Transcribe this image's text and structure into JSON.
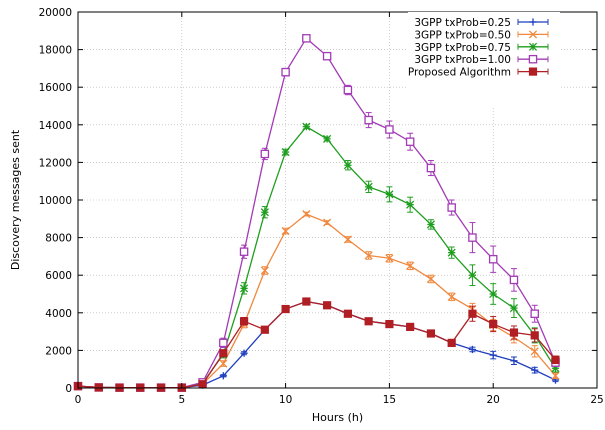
{
  "chart_data": {
    "type": "line",
    "title": "",
    "xlabel": "Hours (h)",
    "ylabel": "Discovery messages sent",
    "xlim": [
      0,
      25
    ],
    "ylim": [
      0,
      20000
    ],
    "xticks": [
      0,
      5,
      10,
      15,
      20,
      25
    ],
    "yticks": [
      0,
      2000,
      4000,
      6000,
      8000,
      10000,
      12000,
      14000,
      16000,
      18000,
      20000
    ],
    "grid": true,
    "legend_position": "top-right",
    "x": [
      0,
      1,
      2,
      3,
      4,
      5,
      6,
      7,
      8,
      9,
      10,
      11,
      12,
      13,
      14,
      15,
      16,
      17,
      18,
      19,
      20,
      21,
      22,
      23
    ],
    "series": [
      {
        "name": "3GPP txProb=0.25",
        "color": "#1f3fbf",
        "marker": "plus",
        "values": [
          100,
          30,
          20,
          20,
          20,
          20,
          150,
          650,
          1850,
          3100,
          4200,
          4600,
          4400,
          3950,
          3550,
          3400,
          3250,
          2900,
          2400,
          2050,
          1750,
          1450,
          950,
          420
        ],
        "errors": [
          0,
          0,
          0,
          0,
          0,
          0,
          0,
          60,
          80,
          60,
          60,
          60,
          60,
          60,
          60,
          60,
          60,
          60,
          60,
          120,
          200,
          200,
          150,
          80
        ]
      },
      {
        "name": "3GPP txProb=0.50",
        "color": "#f0883e",
        "marker": "cross",
        "values": [
          100,
          30,
          20,
          20,
          20,
          20,
          200,
          1300,
          3400,
          6250,
          8350,
          9250,
          8800,
          7900,
          7050,
          6900,
          6500,
          5800,
          4850,
          4200,
          3350,
          2700,
          1950,
          650
        ],
        "errors": [
          0,
          0,
          0,
          0,
          0,
          0,
          0,
          150,
          200,
          200,
          150,
          100,
          100,
          150,
          200,
          200,
          200,
          200,
          200,
          300,
          300,
          300,
          300,
          150
        ]
      },
      {
        "name": "3GPP txProb=0.75",
        "color": "#1f9e1f",
        "marker": "asterisk",
        "values": [
          100,
          30,
          20,
          20,
          20,
          20,
          250,
          1800,
          5300,
          9350,
          12550,
          13900,
          13250,
          11850,
          10700,
          10300,
          9750,
          8700,
          7200,
          6000,
          5000,
          4250,
          2800,
          1050
        ],
        "errors": [
          0,
          0,
          0,
          0,
          0,
          0,
          0,
          200,
          300,
          300,
          150,
          100,
          100,
          250,
          300,
          400,
          400,
          250,
          300,
          550,
          550,
          500,
          400,
          200
        ]
      },
      {
        "name": "3GPP txProb=1.00",
        "color": "#a23bb5",
        "marker": "open-square",
        "values": [
          100,
          30,
          20,
          20,
          20,
          20,
          300,
          2400,
          7250,
          12450,
          16800,
          18600,
          17650,
          15850,
          14250,
          13750,
          13100,
          11700,
          9600,
          8000,
          6850,
          5750,
          3950,
          1350
        ],
        "errors": [
          0,
          0,
          0,
          0,
          0,
          0,
          0,
          250,
          350,
          300,
          200,
          100,
          100,
          250,
          400,
          450,
          450,
          400,
          400,
          800,
          700,
          600,
          450,
          200
        ]
      },
      {
        "name": "Proposed Algorithm",
        "color": "#b01f24",
        "marker": "filled-square",
        "values": [
          100,
          30,
          20,
          20,
          20,
          20,
          200,
          1850,
          3550,
          3100,
          4200,
          4600,
          4400,
          3950,
          3550,
          3400,
          3250,
          2900,
          2400,
          3950,
          3400,
          2950,
          2800,
          1500
        ],
        "errors": [
          0,
          0,
          0,
          0,
          0,
          0,
          0,
          150,
          200,
          80,
          80,
          80,
          80,
          80,
          80,
          80,
          80,
          80,
          80,
          400,
          400,
          350,
          350,
          200
        ]
      }
    ]
  }
}
